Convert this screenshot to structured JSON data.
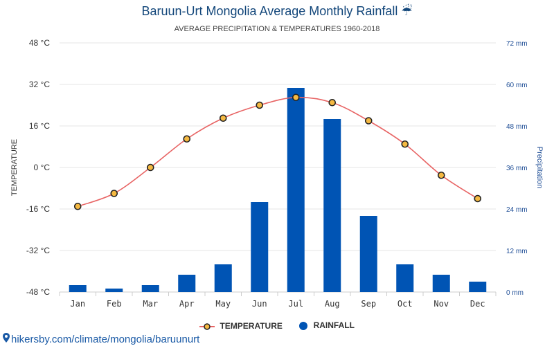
{
  "header": {
    "title": "Baruun-Urt Mongolia Average Monthly Rainfall",
    "title_icon": "umbrella-rain-icon",
    "subtitle": "AVERAGE PRECIPITATION & TEMPERATURES 1960-2018"
  },
  "legend": {
    "temperature_label": "TEMPERATURE",
    "rainfall_label": "RAINFALL"
  },
  "footer": {
    "watermark": "hikersby.com/climate/mongolia/baruunurt",
    "watermark_icon": "location-pin-icon"
  },
  "colors": {
    "bar": "#0054b4",
    "line": "#e86464",
    "marker_fill": "#f5b942",
    "marker_stroke": "#222222",
    "grid": "#e6e6e6",
    "title": "#12467a",
    "right_axis": "#1f4e96"
  },
  "chart_data": {
    "type": "bar+line",
    "categories": [
      "Jan",
      "Feb",
      "Mar",
      "Apr",
      "May",
      "Jun",
      "Jul",
      "Aug",
      "Sep",
      "Oct",
      "Nov",
      "Dec"
    ],
    "series": [
      {
        "name": "TEMPERATURE",
        "type": "line",
        "axis": "left",
        "unit": "°C",
        "values": [
          -15,
          -10,
          0,
          11,
          19,
          24,
          27,
          25,
          18,
          9,
          -3,
          -12
        ]
      },
      {
        "name": "RAINFALL",
        "type": "bar",
        "axis": "right",
        "unit": "mm",
        "values": [
          2,
          1,
          2,
          5,
          8,
          26,
          59,
          50,
          22,
          8,
          5,
          3
        ]
      }
    ],
    "y_left": {
      "label": "TEMPERATURE",
      "range": [
        -48,
        48
      ],
      "ticks": [
        48,
        32,
        16,
        0,
        -16,
        -32,
        -48
      ],
      "tick_labels": [
        "48 °C",
        "32 °C",
        "16 °C",
        "0 °C",
        "-16 °C",
        "-32 °C",
        "-48 °C"
      ]
    },
    "y_right": {
      "label": "Precipitation",
      "range": [
        0,
        72
      ],
      "ticks": [
        72,
        60,
        48,
        36,
        24,
        12,
        0
      ],
      "tick_labels": [
        "72 mm",
        "60 mm",
        "48 mm",
        "36 mm",
        "24 mm",
        "12 mm",
        "0 mm"
      ]
    },
    "grid": true,
    "legend_position": "bottom"
  }
}
